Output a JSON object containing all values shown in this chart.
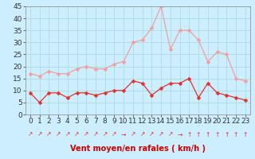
{
  "hours": [
    0,
    1,
    2,
    3,
    4,
    5,
    6,
    7,
    8,
    9,
    10,
    11,
    12,
    13,
    14,
    15,
    16,
    17,
    18,
    19,
    20,
    21,
    22,
    23
  ],
  "wind_avg": [
    9,
    5,
    9,
    9,
    7,
    9,
    9,
    8,
    9,
    10,
    10,
    14,
    13,
    8,
    11,
    13,
    13,
    15,
    7,
    13,
    9,
    8,
    7,
    6
  ],
  "wind_gust": [
    17,
    16,
    18,
    17,
    17,
    19,
    20,
    19,
    19,
    21,
    22,
    30,
    31,
    36,
    45,
    27,
    35,
    35,
    31,
    22,
    26,
    25,
    15,
    14
  ],
  "avg_color": "#e03030",
  "gust_color": "#f0a0a0",
  "bg_color": "#cceeff",
  "grid_color": "#aadddd",
  "xlabel": "Vent moyen/en rafales ( km/h )",
  "xlabel_color": "#cc0000",
  "ylim": [
    0,
    45
  ],
  "yticks": [
    0,
    5,
    10,
    15,
    20,
    25,
    30,
    35,
    40,
    45
  ],
  "arrow_symbols": [
    "↗",
    "↗",
    "↗",
    "↗",
    "↗",
    "↗",
    "↗",
    "↗",
    "↗",
    "↗",
    "→",
    "↗",
    "↗",
    "↗",
    "↗",
    "↗",
    "→",
    "↑",
    "↑",
    "↑",
    "↑",
    "↑",
    "↑",
    "↑"
  ],
  "tick_fontsize": 6.5,
  "marker_size": 2.5
}
